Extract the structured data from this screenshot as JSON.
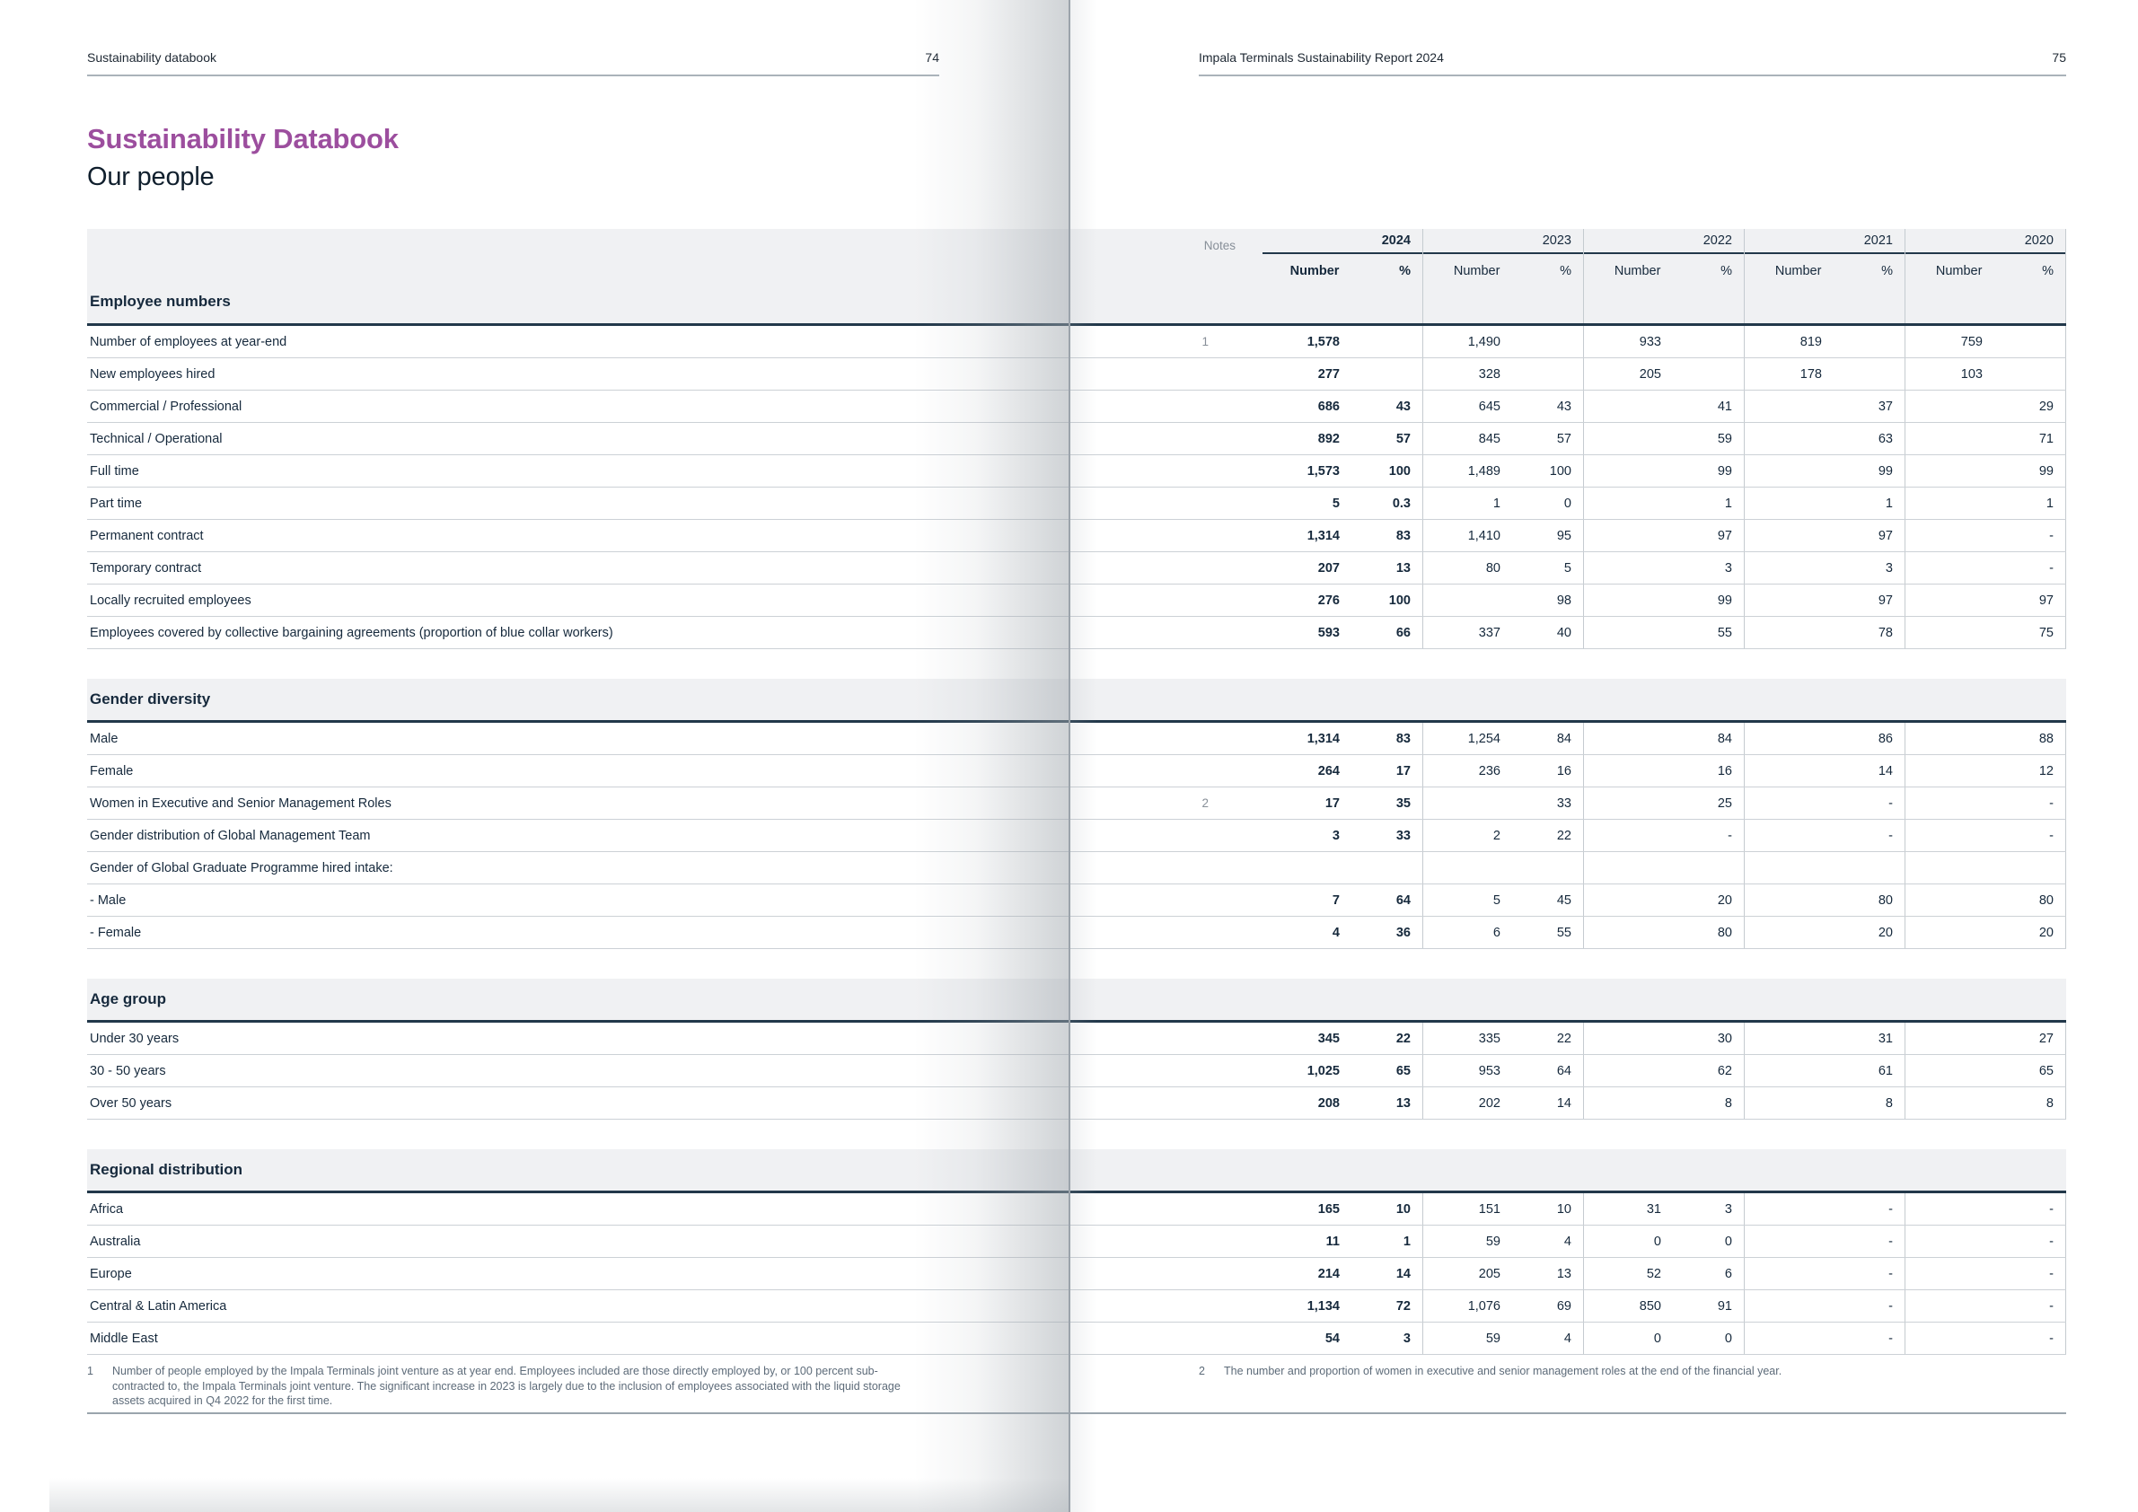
{
  "pages": {
    "left": {
      "header": "Sustainability databook",
      "page_number": "74"
    },
    "right": {
      "header": "Impala Terminals Sustainability Report 2024",
      "page_number": "75"
    }
  },
  "title": "Sustainability Databook",
  "subtitle": "Our people",
  "colors": {
    "accent_purple": "#9c4e9e",
    "text_navy": "#16293c",
    "band_gray": "#f0f1f3",
    "note_gray": "#878f98",
    "footnote_gray": "#5d6b79"
  },
  "table": {
    "notes_label": "Notes",
    "number_label": "Number",
    "pct_label": "%",
    "years": [
      "2024",
      "2023",
      "2022",
      "2021",
      "2020"
    ],
    "sections": [
      {
        "title": "Employee numbers",
        "rows": [
          {
            "label": "Number of employees at year-end",
            "note": "1",
            "cells": [
              [
                "1,578",
                ""
              ],
              [
                "1,490",
                ""
              ],
              [
                "933",
                ""
              ],
              [
                "819",
                ""
              ],
              [
                "759",
                ""
              ]
            ]
          },
          {
            "label": "New employees hired",
            "note": "",
            "cells": [
              [
                "277",
                ""
              ],
              [
                "328",
                ""
              ],
              [
                "205",
                ""
              ],
              [
                "178",
                ""
              ],
              [
                "103",
                ""
              ]
            ]
          },
          {
            "label": "Commercial / Professional",
            "note": "",
            "cells": [
              [
                "686",
                "43"
              ],
              [
                "645",
                "43"
              ],
              [
                "",
                "41"
              ],
              [
                "",
                "37"
              ],
              [
                "",
                "29"
              ]
            ]
          },
          {
            "label": "Technical / Operational",
            "note": "",
            "cells": [
              [
                "892",
                "57"
              ],
              [
                "845",
                "57"
              ],
              [
                "",
                "59"
              ],
              [
                "",
                "63"
              ],
              [
                "",
                "71"
              ]
            ]
          },
          {
            "label": "Full time",
            "note": "",
            "cells": [
              [
                "1,573",
                "100"
              ],
              [
                "1,489",
                "100"
              ],
              [
                "",
                "99"
              ],
              [
                "",
                "99"
              ],
              [
                "",
                "99"
              ]
            ]
          },
          {
            "label": "Part time",
            "note": "",
            "cells": [
              [
                "5",
                "0.3"
              ],
              [
                "1",
                "0"
              ],
              [
                "",
                "1"
              ],
              [
                "",
                "1"
              ],
              [
                "",
                "1"
              ]
            ]
          },
          {
            "label": "Permanent contract",
            "note": "",
            "cells": [
              [
                "1,314",
                "83"
              ],
              [
                "1,410",
                "95"
              ],
              [
                "",
                "97"
              ],
              [
                "",
                "97"
              ],
              [
                "",
                "-"
              ]
            ]
          },
          {
            "label": "Temporary contract",
            "note": "",
            "cells": [
              [
                "207",
                "13"
              ],
              [
                "80",
                "5"
              ],
              [
                "",
                "3"
              ],
              [
                "",
                "3"
              ],
              [
                "",
                "-"
              ]
            ]
          },
          {
            "label": "Locally recruited employees",
            "note": "",
            "cells": [
              [
                "276",
                "100"
              ],
              [
                "",
                "98"
              ],
              [
                "",
                "99"
              ],
              [
                "",
                "97"
              ],
              [
                "",
                "97"
              ]
            ]
          },
          {
            "label": "Employees covered by collective bargaining agreements (proportion of blue collar workers)",
            "note": "",
            "cells": [
              [
                "593",
                "66"
              ],
              [
                "337",
                "40"
              ],
              [
                "",
                "55"
              ],
              [
                "",
                "78"
              ],
              [
                "",
                "75"
              ]
            ]
          }
        ]
      },
      {
        "title": "Gender diversity",
        "rows": [
          {
            "label": "Male",
            "note": "",
            "cells": [
              [
                "1,314",
                "83"
              ],
              [
                "1,254",
                "84"
              ],
              [
                "",
                "84"
              ],
              [
                "",
                "86"
              ],
              [
                "",
                "88"
              ]
            ]
          },
          {
            "label": "Female",
            "note": "",
            "cells": [
              [
                "264",
                "17"
              ],
              [
                "236",
                "16"
              ],
              [
                "",
                "16"
              ],
              [
                "",
                "14"
              ],
              [
                "",
                "12"
              ]
            ]
          },
          {
            "label": "Women in Executive and Senior Management Roles",
            "note": "2",
            "cells": [
              [
                "17",
                "35"
              ],
              [
                "",
                "33"
              ],
              [
                "",
                "25"
              ],
              [
                "",
                "-"
              ],
              [
                "",
                "-"
              ]
            ]
          },
          {
            "label": "Gender distribution of Global Management Team",
            "note": "",
            "cells": [
              [
                "3",
                "33"
              ],
              [
                "2",
                "22"
              ],
              [
                "",
                "-"
              ],
              [
                "",
                "-"
              ],
              [
                "",
                "-"
              ]
            ]
          },
          {
            "label": "Gender of Global Graduate Programme hired intake:",
            "note": "",
            "cells": [
              [
                "",
                ""
              ],
              [
                "",
                ""
              ],
              [
                "",
                ""
              ],
              [
                "",
                ""
              ],
              [
                "",
                ""
              ]
            ]
          },
          {
            "label": "- Male",
            "note": "",
            "cells": [
              [
                "7",
                "64"
              ],
              [
                "5",
                "45"
              ],
              [
                "",
                "20"
              ],
              [
                "",
                "80"
              ],
              [
                "",
                "80"
              ]
            ]
          },
          {
            "label": "- Female",
            "note": "",
            "cells": [
              [
                "4",
                "36"
              ],
              [
                "6",
                "55"
              ],
              [
                "",
                "80"
              ],
              [
                "",
                "20"
              ],
              [
                "",
                "20"
              ]
            ]
          }
        ]
      },
      {
        "title": "Age group",
        "rows": [
          {
            "label": "Under 30 years",
            "note": "",
            "cells": [
              [
                "345",
                "22"
              ],
              [
                "335",
                "22"
              ],
              [
                "",
                "30"
              ],
              [
                "",
                "31"
              ],
              [
                "",
                "27"
              ]
            ]
          },
          {
            "label": "30 - 50 years",
            "note": "",
            "cells": [
              [
                "1,025",
                "65"
              ],
              [
                "953",
                "64"
              ],
              [
                "",
                "62"
              ],
              [
                "",
                "61"
              ],
              [
                "",
                "65"
              ]
            ]
          },
          {
            "label": "Over 50 years",
            "note": "",
            "cells": [
              [
                "208",
                "13"
              ],
              [
                "202",
                "14"
              ],
              [
                "",
                "8"
              ],
              [
                "",
                "8"
              ],
              [
                "",
                "8"
              ]
            ]
          }
        ]
      },
      {
        "title": "Regional distribution",
        "rows": [
          {
            "label": "Africa",
            "note": "",
            "cells": [
              [
                "165",
                "10"
              ],
              [
                "151",
                "10"
              ],
              [
                "31",
                "3"
              ],
              [
                "",
                "-"
              ],
              [
                "",
                "-"
              ]
            ]
          },
          {
            "label": "Australia",
            "note": "",
            "cells": [
              [
                "11",
                "1"
              ],
              [
                "59",
                "4"
              ],
              [
                "0",
                "0"
              ],
              [
                "",
                "-"
              ],
              [
                "",
                "-"
              ]
            ]
          },
          {
            "label": "Europe",
            "note": "",
            "cells": [
              [
                "214",
                "14"
              ],
              [
                "205",
                "13"
              ],
              [
                "52",
                "6"
              ],
              [
                "",
                "-"
              ],
              [
                "",
                "-"
              ]
            ]
          },
          {
            "label": "Central & Latin America",
            "note": "",
            "cells": [
              [
                "1,134",
                "72"
              ],
              [
                "1,076",
                "69"
              ],
              [
                "850",
                "91"
              ],
              [
                "",
                "-"
              ],
              [
                "",
                "-"
              ]
            ]
          },
          {
            "label": "Middle East",
            "note": "",
            "cells": [
              [
                "54",
                "3"
              ],
              [
                "59",
                "4"
              ],
              [
                "0",
                "0"
              ],
              [
                "",
                "-"
              ],
              [
                "",
                "-"
              ]
            ]
          }
        ]
      }
    ]
  },
  "footnotes": [
    {
      "num": "1",
      "text": "Number of people employed by the Impala Terminals joint venture as at year end. Employees included are those directly employed by, or 100 percent sub-contracted to, the Impala Terminals joint venture. The significant increase in 2023 is largely due to the inclusion of employees associated with the liquid storage assets acquired in Q4 2022 for the first time."
    },
    {
      "num": "2",
      "text": "The number and proportion of women in executive and senior management roles at the end of the financial year."
    }
  ]
}
